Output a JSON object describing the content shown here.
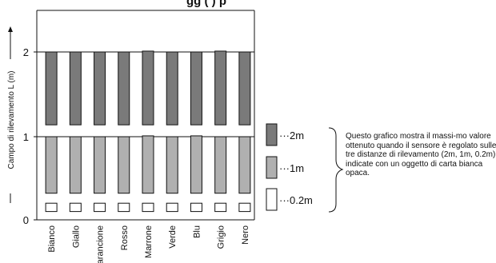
{
  "chart_data": {
    "type": "bar",
    "title_fragment": "gg   (                    )       p",
    "ylabel": "Campo di rilevamento L (m)",
    "ylim": [
      0,
      2.5
    ],
    "yticks": [
      "0",
      "1",
      "2"
    ],
    "categories": [
      "Bianco",
      "Giallo",
      "arancione",
      "Rosso",
      "Marrone",
      "Verde",
      "Blu",
      "Grigio",
      "Nero"
    ],
    "series": [
      {
        "name": "···2m",
        "color": "#7a7a7a",
        "low": [
          1.14,
          1.14,
          1.14,
          1.14,
          1.14,
          1.14,
          1.14,
          1.14,
          1.14
        ],
        "high": [
          2.0,
          2.0,
          2.0,
          2.0,
          2.01,
          2.0,
          2.0,
          2.01,
          2.0
        ]
      },
      {
        "name": "···1m",
        "color": "#b0b0b0",
        "low": [
          0.32,
          0.32,
          0.32,
          0.32,
          0.32,
          0.32,
          0.32,
          0.32,
          0.32
        ],
        "high": [
          1.0,
          1.0,
          1.0,
          1.0,
          1.01,
          1.0,
          1.01,
          1.0,
          1.0
        ]
      },
      {
        "name": "···0.2m",
        "color": "#ffffff",
        "low": [
          0.1,
          0.1,
          0.1,
          0.1,
          0.1,
          0.1,
          0.1,
          0.1,
          0.1
        ],
        "high": [
          0.2,
          0.2,
          0.2,
          0.2,
          0.2,
          0.2,
          0.2,
          0.2,
          0.2
        ]
      }
    ],
    "grid": "horizontal at 1 and 2",
    "legend_position": "right"
  },
  "note": "Questo grafico mostra il massi-mo valore ottenuto quando il sensore è regolato sulle tre distanze di rilevamento (2m, 1m, 0.2m) indicate con un oggetto di carta bianca opaca."
}
